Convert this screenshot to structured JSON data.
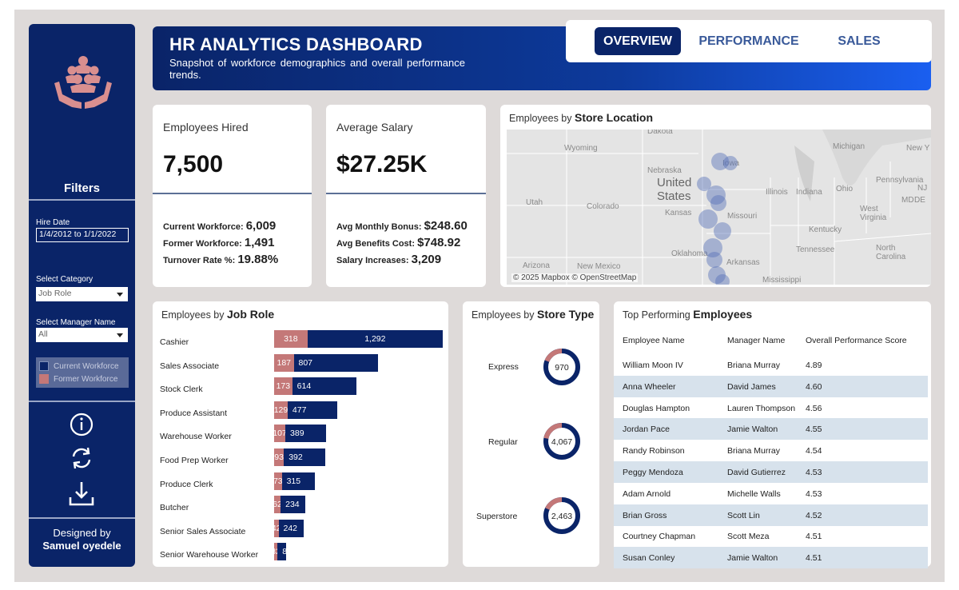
{
  "sidebar": {
    "filters_title": "Filters",
    "hire_date_label": "Hire Date",
    "hire_date_value": "1/4/2012 to 1/1/2022",
    "category_label": "Select Category",
    "category_value": "Job Role",
    "manager_label": "Select Manager Name",
    "manager_value": "All",
    "legend": [
      {
        "label": "Current Workforce",
        "color": "#0a2468"
      },
      {
        "label": "Former Workforce",
        "color": "#c47878"
      }
    ],
    "designed_by_label": "Designed by",
    "designer_name": "Samuel oyedele"
  },
  "header": {
    "title": "HR ANALYTICS DASHBOARD",
    "subtitle": "Snapshot of workforce demographics and overall performance trends."
  },
  "tabs": [
    {
      "label": "OVERVIEW",
      "active": true
    },
    {
      "label": "PERFORMANCE",
      "active": false
    },
    {
      "label": "SALES",
      "active": false
    }
  ],
  "kpi_hired": {
    "title": "Employees Hired",
    "value": "7,500",
    "lines": [
      {
        "label": "Current Workforce:",
        "value": "6,009"
      },
      {
        "label": "Former Workforce:",
        "value": "1,491"
      },
      {
        "label": "Turnover Rate %:",
        "value": "19.88%"
      }
    ]
  },
  "kpi_salary": {
    "title": "Average Salary",
    "value": "$27.25K",
    "lines": [
      {
        "label": "Avg Monthly Bonus:",
        "value": "$248.60"
      },
      {
        "label": "Avg Benefits Cost:",
        "value": "$748.92"
      },
      {
        "label": "Salary Increases:",
        "value": "3,209"
      }
    ]
  },
  "map": {
    "title_prefix": "Employees by",
    "title_bold": "Store Location",
    "attribution": "© 2025 Mapbox © OpenStreetMap",
    "labels": {
      "dakota": "Dakota",
      "wyoming": "Wyoming",
      "michigan": "Michigan",
      "new_york": "New Y",
      "nebraska": "Nebraska",
      "united": "United",
      "states": "States",
      "iowa": "Iowa",
      "illinois": "Illinois",
      "indiana": "Indiana",
      "ohio": "Ohio",
      "pennsylvania": "Pennsylvania",
      "utah": "Utah",
      "colorado": "Colorado",
      "kansas": "Kansas",
      "missouri": "Missouri",
      "west_virginia": "West Virginia",
      "md": "MD",
      "nj": "NJ",
      "de": "DE",
      "kentucky": "Kentucky",
      "oklahoma": "Oklahoma",
      "arkansas": "Arkansas",
      "tennessee": "Tennessee",
      "north_carolina": "North Carolina",
      "arizona": "Arizona",
      "new_mexico": "New Mexico",
      "mississippi": "Mississippi"
    }
  },
  "job_roles": {
    "title_prefix": "Employees by",
    "title_bold": "Job Role",
    "max": 1610,
    "rows": [
      {
        "role": "Cashier",
        "former": 318,
        "current": 1292
      },
      {
        "role": "Sales Associate",
        "former": 187,
        "current": 807
      },
      {
        "role": "Stock Clerk",
        "former": 173,
        "current": 614
      },
      {
        "role": "Produce Assistant",
        "former": 129,
        "current": 477
      },
      {
        "role": "Warehouse Worker",
        "former": 107,
        "current": 389
      },
      {
        "role": "Food Prep Worker",
        "former": 93,
        "current": 392
      },
      {
        "role": "Produce Clerk",
        "former": 73,
        "current": 315
      },
      {
        "role": "Butcher",
        "former": 62,
        "current": 234
      },
      {
        "role": "Senior Sales Associate",
        "former": 42,
        "current": 242
      },
      {
        "role": "Senior Warehouse Worker",
        "former": 32,
        "current": 82
      }
    ],
    "former_labels": [
      "318",
      "187",
      "173",
      "129",
      "107",
      "93",
      "73",
      "62",
      "42",
      "32"
    ],
    "current_labels": [
      "1,292",
      "807",
      "614",
      "477",
      "389",
      "392",
      "315",
      "234",
      "242",
      "82"
    ]
  },
  "store_types": {
    "title_prefix": "Employees by",
    "title_bold": "Store Type",
    "rows": [
      {
        "label": "Express",
        "value": "970",
        "former_share": 0.19
      },
      {
        "label": "Regular",
        "value": "4,067",
        "former_share": 0.22
      },
      {
        "label": "Superstore",
        "value": "2,463",
        "former_share": 0.18
      }
    ]
  },
  "top_performers": {
    "title_prefix": "Top Performing",
    "title_bold": "Employees",
    "columns": [
      "Employee Name",
      "Manager Name",
      "Overall Performance Score"
    ],
    "rows": [
      [
        "William Moon IV",
        "Briana Murray",
        "4.89"
      ],
      [
        "Anna Wheeler",
        "David James",
        "4.60"
      ],
      [
        "Douglas Hampton",
        "Lauren Thompson",
        "4.56"
      ],
      [
        "Jordan Pace",
        "Jamie Walton",
        "4.55"
      ],
      [
        "Randy Robinson",
        "Briana Murray",
        "4.54"
      ],
      [
        "Peggy Mendoza",
        "David Gutierrez",
        "4.53"
      ],
      [
        "Adam Arnold",
        "Michelle Walls",
        "4.53"
      ],
      [
        "Brian Gross",
        "Scott Lin",
        "4.52"
      ],
      [
        "Courtney Chapman",
        "Scott Meza",
        "4.51"
      ],
      [
        "Susan Conley",
        "Jamie Walton",
        "4.51"
      ]
    ]
  },
  "colors": {
    "navy": "#0a2468",
    "rose": "#c47878",
    "shade": "#d7e2ec"
  }
}
